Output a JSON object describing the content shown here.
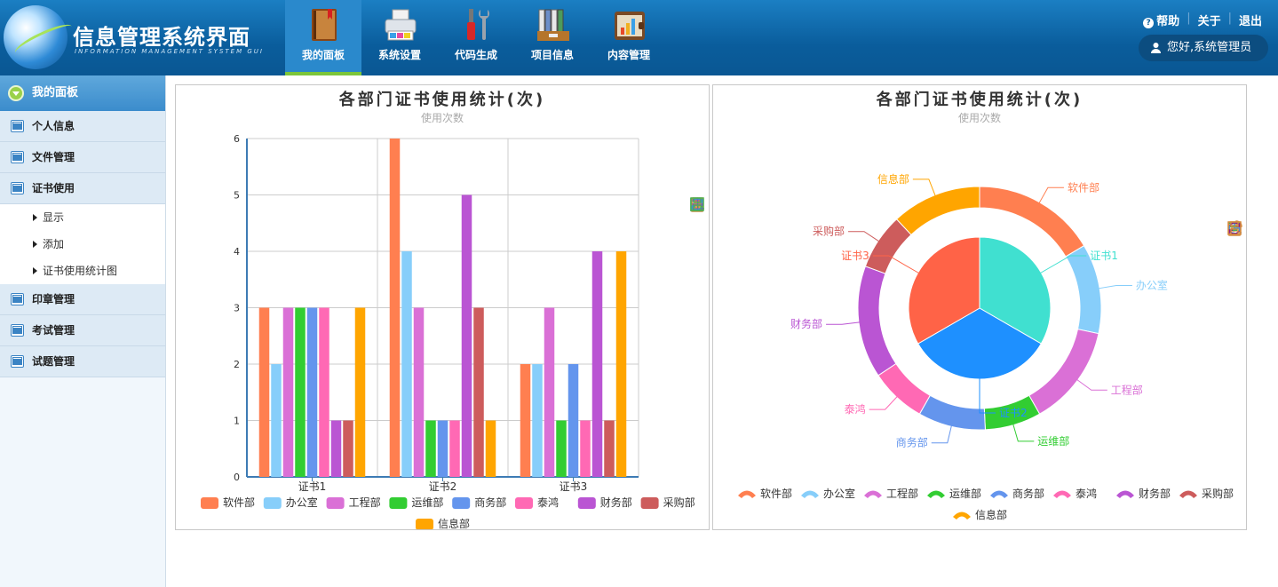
{
  "app": {
    "title": "信息管理系统界面",
    "subtitle": "INFORMATION MANAGEMENT SYSTEM GUI"
  },
  "nav": [
    {
      "label": "我的面板",
      "icon": "book-icon",
      "active": true
    },
    {
      "label": "系统设置",
      "icon": "printer-icon",
      "active": false
    },
    {
      "label": "代码生成",
      "icon": "tools-icon",
      "active": false
    },
    {
      "label": "项目信息",
      "icon": "binders-icon",
      "active": false
    },
    {
      "label": "内容管理",
      "icon": "wallet-chart-icon",
      "active": false
    }
  ],
  "top_links": {
    "help": "帮助",
    "about": "关于",
    "logout": "退出"
  },
  "user": {
    "greeting": "您好,系统管理员"
  },
  "sidebar": {
    "header": "我的面板",
    "items": [
      {
        "label": "个人信息"
      },
      {
        "label": "文件管理"
      },
      {
        "label": "证书使用",
        "children": [
          "显示",
          "添加",
          "证书使用统计图"
        ]
      },
      {
        "label": "印章管理"
      },
      {
        "label": "考试管理"
      },
      {
        "label": "试题管理"
      }
    ]
  },
  "colors": {
    "软件部": "#ff7f50",
    "办公室": "#87cefa",
    "工程部": "#da70d6",
    "运维部": "#32cd32",
    "商务部": "#6495ed",
    "泰鸿": "#ff69b4",
    "财务部": "#ba55d3",
    "采购部": "#cd5c5c",
    "信息部": "#ffa500",
    "证书1": "#40e0d0",
    "证书2": "#1e90ff",
    "证书3": "#ff6347"
  },
  "chart_data": [
    {
      "type": "bar",
      "title": "各部门证书使用统计(次)",
      "subtitle": "使用次数",
      "categories": [
        "证书1",
        "证书2",
        "证书3"
      ],
      "ylim": [
        0,
        6
      ],
      "yticks": [
        0,
        1,
        2,
        3,
        4,
        5,
        6
      ],
      "grid": true,
      "legend_position": "bottom",
      "series": [
        {
          "name": "软件部",
          "values": [
            3,
            6,
            2
          ]
        },
        {
          "name": "办公室",
          "values": [
            2,
            4,
            2
          ]
        },
        {
          "name": "工程部",
          "values": [
            3,
            3,
            3
          ]
        },
        {
          "name": "运维部",
          "values": [
            3,
            1,
            1
          ]
        },
        {
          "name": "商务部",
          "values": [
            3,
            1,
            2
          ]
        },
        {
          "name": "泰鸿",
          "values": [
            3,
            1,
            1
          ]
        },
        {
          "name": "财务部",
          "values": [
            1,
            5,
            4
          ]
        },
        {
          "name": "采购部",
          "values": [
            1,
            3,
            1
          ]
        },
        {
          "name": "信息部",
          "values": [
            3,
            1,
            4
          ]
        }
      ],
      "toolbar": [
        "mark-icon",
        "mark-undo-icon",
        "mark-clear-icon",
        "data-view-icon",
        "line-chart-icon",
        "bar-chart-icon",
        "stack-icon",
        "tiled-icon",
        "restore-icon",
        "save-image-icon"
      ]
    },
    {
      "type": "pie",
      "title": "各部门证书使用统计(次)",
      "subtitle": "使用次数",
      "legend_position": "bottom",
      "inner": [
        {
          "name": "证书1",
          "value": 1
        },
        {
          "name": "证书2",
          "value": 1
        },
        {
          "name": "证书3",
          "value": 1
        }
      ],
      "outer": [
        {
          "name": "软件部",
          "value": 11
        },
        {
          "name": "办公室",
          "value": 8
        },
        {
          "name": "工程部",
          "value": 9
        },
        {
          "name": "运维部",
          "value": 5
        },
        {
          "name": "商务部",
          "value": 6
        },
        {
          "name": "泰鸿",
          "value": 5
        },
        {
          "name": "财务部",
          "value": 10
        },
        {
          "name": "采购部",
          "value": 5
        },
        {
          "name": "信息部",
          "value": 8
        }
      ],
      "toolbar": [
        "mark-icon",
        "mark-undo-icon",
        "mark-clear-icon",
        "data-view-icon",
        "pie-chart-icon",
        "funnel-icon",
        "restore-icon",
        "save-image-icon"
      ]
    }
  ]
}
